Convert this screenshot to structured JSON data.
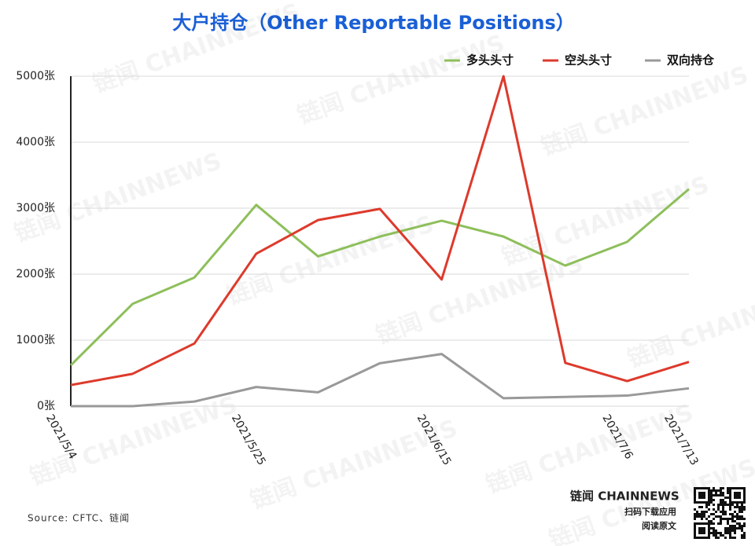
{
  "chart_data": {
    "type": "line",
    "title": "大户持仓（Other Reportable Positions）",
    "categories": [
      "2021/5/4",
      null,
      null,
      "2021/5/25",
      null,
      null,
      "2021/6/15",
      null,
      null,
      "2021/7/6",
      "2021/7/13"
    ],
    "series": [
      {
        "name": "多头头寸",
        "color": "#8dbf5a",
        "values": [
          620,
          1550,
          1950,
          3050,
          2270,
          2570,
          2810,
          2570,
          2130,
          2490,
          3290
        ]
      },
      {
        "name": "空头头寸",
        "color": "#dd3a2c",
        "values": [
          320,
          490,
          950,
          2310,
          2820,
          2990,
          1920,
          5000,
          655,
          380,
          670
        ]
      },
      {
        "name": "双向持仓",
        "color": "#999999",
        "values": [
          0,
          0,
          70,
          290,
          210,
          650,
          790,
          120,
          140,
          160,
          270
        ]
      }
    ],
    "ylim": [
      0,
      5000
    ],
    "yticks": [
      {
        "value": 0,
        "label": "0张"
      },
      {
        "value": 1000,
        "label": "1000张"
      },
      {
        "value": 2000,
        "label": "2000张"
      },
      {
        "value": 3000,
        "label": "3000张"
      },
      {
        "value": 4000,
        "label": "4000张"
      },
      {
        "value": 5000,
        "label": "5000张"
      }
    ],
    "grid": true,
    "legend": "top-right",
    "source": "Source: CFTC、链闻",
    "brand": "链闻 CHAINNEWS",
    "download_note": "扫码下载应用",
    "read_note": "阅读原文",
    "watermark": "链闻 CHAINNEWS"
  }
}
